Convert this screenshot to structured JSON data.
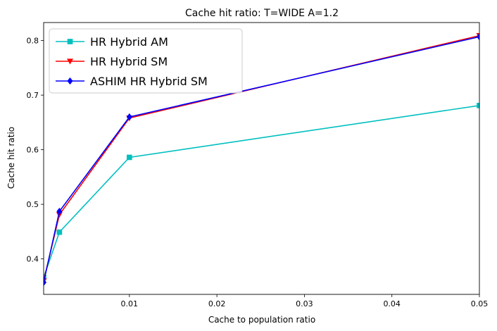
{
  "chart_data": {
    "type": "line",
    "title": "Cache hit ratio: T=WIDE A=1.2",
    "xlabel": "Cache to population ratio",
    "ylabel": "Cache hit ratio",
    "xlim": [
      0.0002,
      0.05
    ],
    "ylim": [
      0.335,
      0.833
    ],
    "xticks": [
      0.01,
      0.02,
      0.03,
      0.04,
      0.05
    ],
    "xtick_labels": [
      "0.01",
      "0.02",
      "0.03",
      "0.04",
      "0.05"
    ],
    "yticks": [
      0.4,
      0.5,
      0.6,
      0.7,
      0.8
    ],
    "ytick_labels": [
      "0.4",
      "0.5",
      "0.6",
      "0.7",
      "0.8"
    ],
    "grid": false,
    "legend_position": "top-left",
    "x": [
      0.0002,
      0.002,
      0.01,
      0.05
    ],
    "series": [
      {
        "name": "HR Hybrid AM",
        "values": [
          0.366,
          0.449,
          0.586,
          0.681
        ],
        "color": "#00bfbf",
        "marker": "square"
      },
      {
        "name": "HR Hybrid SM",
        "values": [
          0.36,
          0.481,
          0.658,
          0.809
        ],
        "color": "#ff0000",
        "marker": "triangle-down"
      },
      {
        "name": "ASHIM HR Hybrid SM",
        "values": [
          0.357,
          0.487,
          0.66,
          0.807
        ],
        "color": "#0000ff",
        "marker": "diamond"
      }
    ]
  }
}
